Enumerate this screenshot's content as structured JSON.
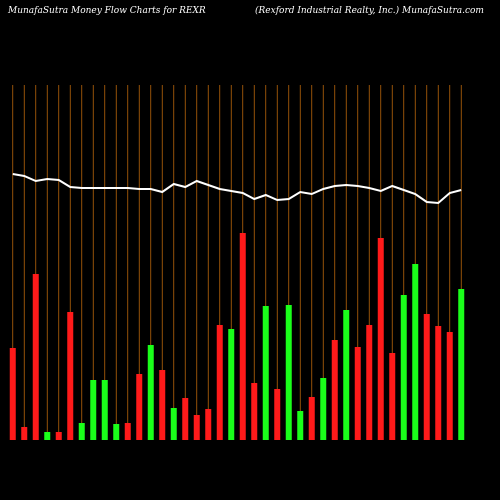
{
  "chart_data": {
    "type": "bar",
    "title": "MunafaSutra  Money Flow  Charts for REXR",
    "subtitle": "(Rexford Industrial Realty,  Inc.) MunafaSutra.com",
    "ylim": [
      0,
      355
    ],
    "grid_color": "#b8660b",
    "categories": [
      null,
      null,
      null,
      null,
      null,
      null,
      null,
      null,
      null,
      null,
      null,
      null,
      null,
      null,
      null,
      null,
      null,
      null,
      null,
      null,
      null,
      null,
      null,
      null,
      null,
      null,
      null,
      null,
      null,
      null,
      null,
      null,
      null,
      null,
      null,
      null,
      null,
      null,
      null,
      null
    ],
    "values": [
      92,
      13,
      166,
      8,
      8,
      128,
      17,
      60,
      60,
      16,
      17,
      66,
      95,
      70,
      32,
      42,
      25,
      31,
      115,
      111,
      207,
      57,
      134,
      51,
      135,
      29,
      43,
      62,
      100,
      130,
      93,
      115,
      202,
      87,
      145,
      176,
      126,
      114,
      108,
      151
    ],
    "colors": [
      "#ff1a1a",
      "#ff1a1a",
      "#ff1a1a",
      "#1aff1a",
      "#ff1a1a",
      "#ff1a1a",
      "#1aff1a",
      "#1aff1a",
      "#1aff1a",
      "#1aff1a",
      "#ff1a1a",
      "#ff1a1a",
      "#1aff1a",
      "#ff1a1a",
      "#1aff1a",
      "#ff1a1a",
      "#ff1a1a",
      "#ff1a1a",
      "#ff1a1a",
      "#1aff1a",
      "#ff1a1a",
      "#ff1a1a",
      "#1aff1a",
      "#ff1a1a",
      "#1aff1a",
      "#1aff1a",
      "#ff1a1a",
      "#1aff1a",
      "#ff1a1a",
      "#1aff1a",
      "#ff1a1a",
      "#ff1a1a",
      "#ff1a1a",
      "#ff1a1a",
      "#1aff1a",
      "#1aff1a",
      "#ff1a1a",
      "#ff1a1a",
      "#ff1a1a",
      "#1aff1a"
    ],
    "line": {
      "color": "#ffffff",
      "values": [
        266,
        264,
        259,
        261,
        260,
        253,
        252,
        252,
        252,
        252,
        252,
        251,
        251,
        248,
        256,
        253,
        259,
        255,
        251,
        249,
        247,
        241,
        245,
        240,
        241,
        248,
        246,
        251,
        254,
        255,
        254,
        252,
        249,
        254,
        250,
        246,
        238,
        237,
        247,
        250
      ]
    }
  }
}
